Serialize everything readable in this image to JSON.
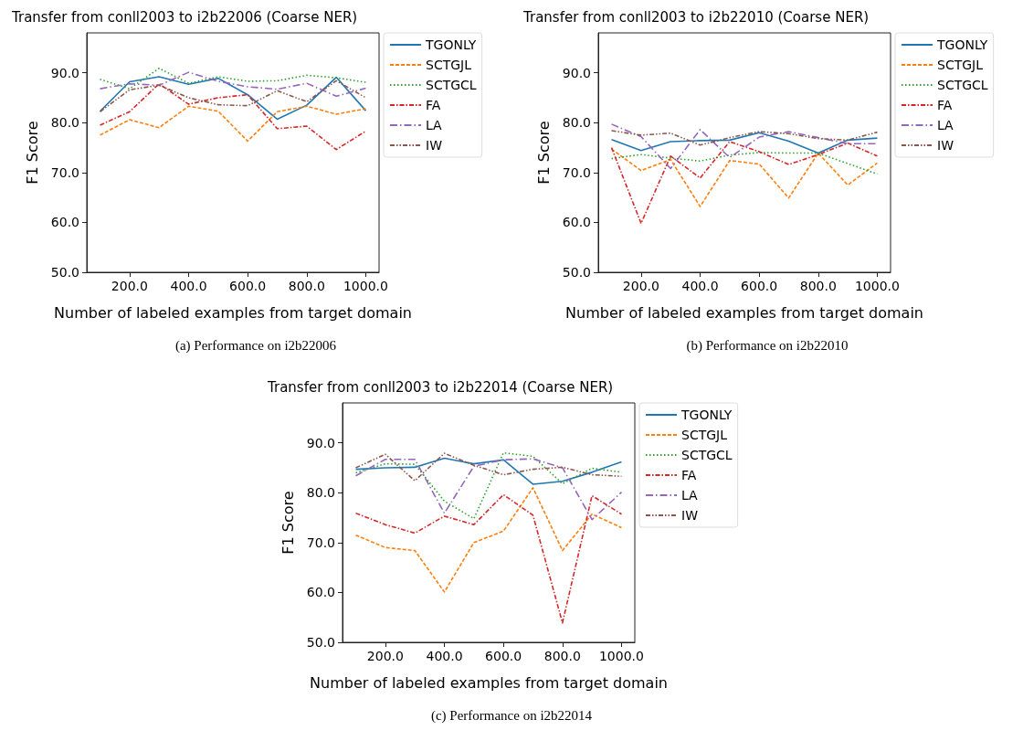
{
  "chart_data": [
    {
      "type": "line",
      "title": "Transfer from conll2003 to i2b22006 (Coarse NER)",
      "xlabel": "Number of labeled examples from target domain",
      "ylabel": "F1 Score",
      "x": [
        100,
        200,
        300,
        400,
        500,
        600,
        700,
        800,
        900,
        1000
      ],
      "xlim": [
        55,
        1045
      ],
      "xticks": [
        {
          "value": 200,
          "label": "200.0"
        },
        {
          "value": 400,
          "label": "400.0"
        },
        {
          "value": 600,
          "label": "600.0"
        },
        {
          "value": 800,
          "label": "800.0"
        },
        {
          "value": 1000,
          "label": "1000.0"
        }
      ],
      "ylim": [
        50,
        98
      ],
      "yticks": [
        {
          "value": 50,
          "label": "50.0"
        },
        {
          "value": 60,
          "label": "60.0"
        },
        {
          "value": 70,
          "label": "70.0"
        },
        {
          "value": 80,
          "label": "80.0"
        },
        {
          "value": 90,
          "label": "90.0"
        }
      ],
      "grid": false,
      "legend": "top right",
      "marker": "none",
      "annotations": [
        "(a) Performance on i2b22006"
      ],
      "series": [
        {
          "name": "TGONLY",
          "color": "#1f77b4",
          "line_style": "solid",
          "values": [
            82.3,
            88.2,
            89.2,
            87.7,
            88.9,
            85.6,
            80.7,
            83.5,
            89.1,
            82.4
          ]
        },
        {
          "name": "SCTGJL",
          "color": "#ff7f0e",
          "line_style": "dashed",
          "values": [
            77.5,
            80.6,
            79.0,
            83.3,
            82.3,
            76.3,
            82.2,
            83.3,
            81.7,
            82.8
          ]
        },
        {
          "name": "SCTGCL",
          "color": "#2ca02c",
          "line_style": "dotted",
          "values": [
            88.7,
            86.8,
            90.9,
            87.9,
            89.2,
            88.3,
            88.4,
            89.5,
            89.0,
            88.1
          ]
        },
        {
          "name": "FA",
          "color": "#d62728",
          "line_style": "dashdot",
          "values": [
            79.5,
            82.2,
            87.8,
            83.7,
            85.0,
            85.6,
            78.8,
            79.3,
            74.6,
            78.3
          ]
        },
        {
          "name": "LA",
          "color": "#9467bd",
          "line_style": "longdashdot",
          "values": [
            86.8,
            87.8,
            87.5,
            90.1,
            88.3,
            87.2,
            86.7,
            87.9,
            85.3,
            86.9
          ]
        },
        {
          "name": "IW",
          "color": "#8c564b",
          "line_style": "dashdotdot",
          "values": [
            82.2,
            86.6,
            87.5,
            85.0,
            83.6,
            83.4,
            86.4,
            84.2,
            88.4,
            85.0
          ]
        }
      ]
    },
    {
      "type": "line",
      "title": "Transfer from conll2003 to i2b22010 (Coarse NER)",
      "xlabel": "Number of labeled examples from target domain",
      "ylabel": "F1 Score",
      "x": [
        100,
        200,
        300,
        400,
        500,
        600,
        700,
        800,
        900,
        1000
      ],
      "xlim": [
        55,
        1045
      ],
      "xticks": [
        {
          "value": 200,
          "label": "200.0"
        },
        {
          "value": 400,
          "label": "400.0"
        },
        {
          "value": 600,
          "label": "600.0"
        },
        {
          "value": 800,
          "label": "800.0"
        },
        {
          "value": 1000,
          "label": "1000.0"
        }
      ],
      "ylim": [
        50,
        98
      ],
      "yticks": [
        {
          "value": 50,
          "label": "50.0"
        },
        {
          "value": 60,
          "label": "60.0"
        },
        {
          "value": 70,
          "label": "70.0"
        },
        {
          "value": 80,
          "label": "80.0"
        },
        {
          "value": 90,
          "label": "90.0"
        }
      ],
      "grid": false,
      "legend": "top right",
      "marker": "none",
      "annotations": [
        "(b) Performance on i2b22010"
      ],
      "series": [
        {
          "name": "TGONLY",
          "color": "#1f77b4",
          "line_style": "solid",
          "values": [
            76.6,
            74.4,
            76.2,
            76.4,
            76.5,
            78.0,
            76.3,
            73.9,
            76.5,
            76.9
          ]
        },
        {
          "name": "SCTGJL",
          "color": "#ff7f0e",
          "line_style": "dashed",
          "values": [
            74.7,
            70.4,
            72.6,
            63.2,
            72.4,
            71.7,
            64.9,
            73.9,
            67.5,
            71.9
          ]
        },
        {
          "name": "SCTGCL",
          "color": "#2ca02c",
          "line_style": "dotted",
          "values": [
            72.8,
            73.6,
            72.9,
            72.3,
            73.5,
            74.0,
            73.9,
            73.9,
            71.8,
            69.7
          ]
        },
        {
          "name": "FA",
          "color": "#d62728",
          "line_style": "dashdot",
          "values": [
            75.0,
            59.8,
            73.3,
            68.9,
            76.2,
            74.2,
            71.6,
            73.6,
            75.9,
            73.3
          ]
        },
        {
          "name": "LA",
          "color": "#9467bd",
          "line_style": "longdashdot",
          "values": [
            79.7,
            77.2,
            70.8,
            78.6,
            73.0,
            77.1,
            78.2,
            77.0,
            75.8,
            75.8
          ]
        },
        {
          "name": "IW",
          "color": "#8c564b",
          "line_style": "dashdotdot",
          "values": [
            78.4,
            77.5,
            77.9,
            75.5,
            77.0,
            78.2,
            77.8,
            76.8,
            76.5,
            78.1
          ]
        }
      ]
    },
    {
      "type": "line",
      "title": "Transfer from conll2003 to i2b22014 (Coarse NER)",
      "xlabel": "Number of labeled examples from target domain",
      "ylabel": "F1 Score",
      "x": [
        100,
        200,
        300,
        400,
        500,
        600,
        700,
        800,
        900,
        1000
      ],
      "xlim": [
        55,
        1045
      ],
      "xticks": [
        {
          "value": 200,
          "label": "200.0"
        },
        {
          "value": 400,
          "label": "400.0"
        },
        {
          "value": 600,
          "label": "600.0"
        },
        {
          "value": 800,
          "label": "800.0"
        },
        {
          "value": 1000,
          "label": "1000.0"
        }
      ],
      "ylim": [
        50,
        98
      ],
      "yticks": [
        {
          "value": 50,
          "label": "50.0"
        },
        {
          "value": 60,
          "label": "60.0"
        },
        {
          "value": 70,
          "label": "70.0"
        },
        {
          "value": 80,
          "label": "80.0"
        },
        {
          "value": 90,
          "label": "90.0"
        }
      ],
      "grid": false,
      "legend": "top right",
      "marker": "none",
      "annotations": [
        "(c) Performance on i2b22014"
      ],
      "series": [
        {
          "name": "TGONLY",
          "color": "#1f77b4",
          "line_style": "solid",
          "values": [
            84.7,
            85.0,
            85.1,
            86.9,
            85.8,
            86.6,
            81.7,
            82.3,
            84.1,
            86.2
          ]
        },
        {
          "name": "SCTGJL",
          "color": "#ff7f0e",
          "line_style": "dashed",
          "values": [
            71.5,
            69.0,
            68.4,
            60.1,
            70.0,
            72.3,
            81.0,
            68.4,
            75.7,
            73.0
          ]
        },
        {
          "name": "SCTGCL",
          "color": "#2ca02c",
          "line_style": "dotted",
          "values": [
            84.0,
            85.8,
            85.7,
            78.3,
            74.8,
            88.0,
            87.3,
            81.8,
            84.9,
            84.1
          ]
        },
        {
          "name": "FA",
          "color": "#d62728",
          "line_style": "dashdot",
          "values": [
            75.9,
            73.6,
            71.9,
            75.3,
            73.6,
            79.6,
            75.5,
            53.9,
            79.4,
            75.7
          ]
        },
        {
          "name": "LA",
          "color": "#9467bd",
          "line_style": "longdashdot",
          "values": [
            83.4,
            86.7,
            86.7,
            75.9,
            85.3,
            86.6,
            86.8,
            85.0,
            74.6,
            80.1
          ]
        },
        {
          "name": "IW",
          "color": "#8c564b",
          "line_style": "dashdotdot",
          "values": [
            85.0,
            87.7,
            82.4,
            87.9,
            85.5,
            83.6,
            84.7,
            85.1,
            83.6,
            83.3
          ]
        }
      ]
    }
  ]
}
